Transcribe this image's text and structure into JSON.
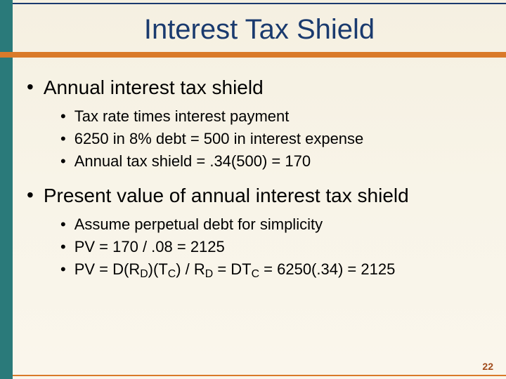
{
  "colors": {
    "left_bar": "#2a7a7a",
    "accent_line": "#d97a2a",
    "title_color": "#1a3a6e",
    "background_top": "#f5f0e1",
    "background_bottom": "#faf6ec",
    "page_num_color": "#a04a1a"
  },
  "title": "Interest Tax Shield",
  "page_number": "22",
  "bullets": [
    {
      "level": 1,
      "text": "Annual interest tax shield"
    },
    {
      "level": 2,
      "text": "Tax rate times interest payment"
    },
    {
      "level": 2,
      "text": "6250 in 8% debt = 500 in interest expense"
    },
    {
      "level": 2,
      "text": "Annual tax shield = .34(500) = 170"
    },
    {
      "level": 1,
      "text": "Present value of annual interest tax shield"
    },
    {
      "level": 2,
      "text": "Assume perpetual debt for simplicity"
    },
    {
      "level": 2,
      "text": "PV = 170 / .08 = 2125"
    },
    {
      "level": 2,
      "html": "PV = D(R<span class=\"sub\">D</span>)(T<span class=\"sub\">C</span>) / R<span class=\"sub\">D</span> = DT<span class=\"sub\">C</span> = 6250(.34) = 2125",
      "text": "PV = D(RD)(TC) / RD = DTC = 6250(.34) = 2125"
    }
  ]
}
